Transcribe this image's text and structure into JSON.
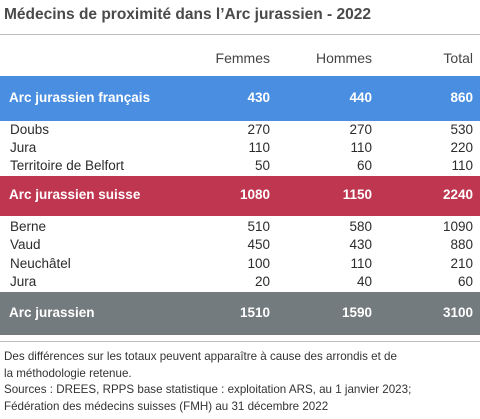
{
  "title": "Médecins de proximité dans l’Arc jurassien - 2022",
  "columns": [
    "",
    "Femmes",
    "Hommes",
    "Total"
  ],
  "groups": [
    {
      "name": "Arc jurassien français",
      "color": "#4a8ee1",
      "values": [
        "430",
        "440",
        "860"
      ],
      "rows": [
        {
          "label": "Doubs",
          "values": [
            "270",
            "270",
            "530"
          ]
        },
        {
          "label": "Jura",
          "values": [
            "110",
            "110",
            "220"
          ]
        },
        {
          "label": "Territoire de Belfort",
          "values": [
            "50",
            "60",
            "110"
          ]
        }
      ]
    },
    {
      "name": "Arc jurassien suisse",
      "color": "#bf3650",
      "values": [
        "1080",
        "1150",
        "2240"
      ],
      "rows": [
        {
          "label": "Berne",
          "values": [
            "510",
            "580",
            "1090"
          ]
        },
        {
          "label": "Vaud",
          "values": [
            "450",
            "430",
            "880"
          ]
        },
        {
          "label": "Neuchâtel",
          "values": [
            "100",
            "110",
            "210"
          ]
        },
        {
          "label": "Jura",
          "values": [
            "20",
            "40",
            "60"
          ]
        }
      ]
    }
  ],
  "total": {
    "name": "Arc jurassien",
    "color": "#737b7e",
    "values": [
      "1510",
      "1590",
      "3100"
    ]
  },
  "notes": [
    "Des différences sur les totaux peuvent apparaître à cause des arrondis et de",
    "la méthodologie retenue.",
    "Sources : DREES, RPPS base statistique : exploitation ARS, au 1 janvier 2023;",
    "Fédération des médecins suisses (FMH) au 31 décembre 2022"
  ],
  "chart_data": {
    "type": "table",
    "title": "Médecins de proximité dans l’Arc jurassien - 2022",
    "columns": [
      "Femmes",
      "Hommes",
      "Total"
    ],
    "rows": [
      {
        "label": "Arc jurassien français",
        "values": [
          430,
          440,
          860
        ]
      },
      {
        "label": "Doubs",
        "values": [
          270,
          270,
          530
        ]
      },
      {
        "label": "Jura",
        "values": [
          110,
          110,
          220
        ]
      },
      {
        "label": "Territoire de Belfort",
        "values": [
          50,
          60,
          110
        ]
      },
      {
        "label": "Arc jurassien suisse",
        "values": [
          1080,
          1150,
          2240
        ]
      },
      {
        "label": "Berne",
        "values": [
          510,
          580,
          1090
        ]
      },
      {
        "label": "Vaud",
        "values": [
          450,
          430,
          880
        ]
      },
      {
        "label": "Neuchâtel",
        "values": [
          100,
          110,
          210
        ]
      },
      {
        "label": "Jura",
        "values": [
          20,
          40,
          60
        ]
      },
      {
        "label": "Arc jurassien",
        "values": [
          1510,
          1590,
          3100
        ]
      }
    ]
  }
}
